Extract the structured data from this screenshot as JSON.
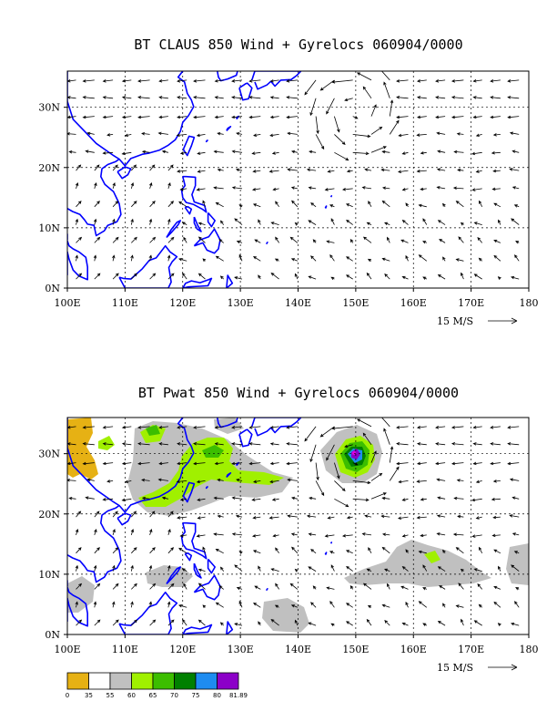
{
  "chart_data": [
    {
      "type": "vector-field",
      "title": "BT CLAUS 850 Wind + Gyrelocs 060904/0000",
      "x_ticks": [
        "100E",
        "110E",
        "120E",
        "130E",
        "140E",
        "150E",
        "160E",
        "170E",
        "180"
      ],
      "y_ticks": [
        "0N",
        "10N",
        "20N",
        "30N"
      ],
      "xlim": [
        100,
        180
      ],
      "ylim": [
        0,
        36
      ],
      "grid": true,
      "reference_vector": "15 M/S",
      "gyre_center": {
        "lon": 150,
        "lat": 30
      }
    },
    {
      "type": "heatmap",
      "title": "BT Pwat 850 Wind + Gyrelocs 060904/0000",
      "x_ticks": [
        "100E",
        "110E",
        "120E",
        "130E",
        "140E",
        "150E",
        "160E",
        "170E",
        "180"
      ],
      "y_ticks": [
        "0N",
        "10N",
        "20N",
        "30N"
      ],
      "xlim": [
        100,
        180
      ],
      "ylim": [
        0,
        36
      ],
      "grid": true,
      "reference_vector": "15 M/S",
      "gyre_center": {
        "lon": 150,
        "lat": 30
      },
      "colorbar": {
        "ticks": [
          "0",
          "35",
          "55",
          "60",
          "65",
          "70",
          "75",
          "80",
          "81.89"
        ],
        "colors": [
          "#e6b114",
          "#ffffff",
          "#c0c0c0",
          "#a0f000",
          "#3cbe00",
          "#008000",
          "#1e8cf0",
          "#8c00c8"
        ]
      }
    }
  ]
}
